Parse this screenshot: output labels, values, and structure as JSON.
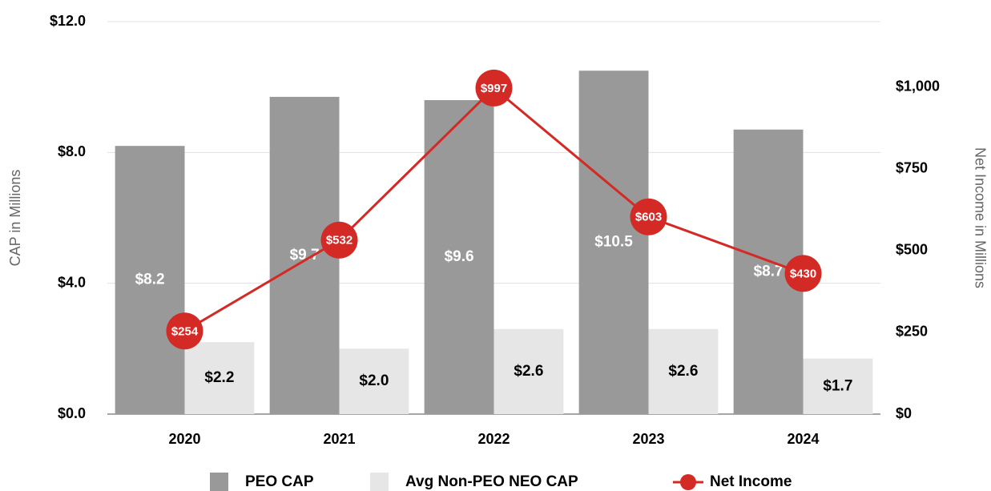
{
  "chart_data": {
    "type": "bar",
    "categories": [
      "2020",
      "2021",
      "2022",
      "2023",
      "2024"
    ],
    "series": [
      {
        "name": "PEO CAP",
        "color": "#999999",
        "values": [
          8.2,
          9.7,
          9.6,
          10.5,
          8.7
        ],
        "value_labels": [
          "$8.2",
          "$9.7",
          "$9.6",
          "$10.5",
          "$8.7"
        ]
      },
      {
        "name": "Avg Non-PEO NEO CAP",
        "color": "#e6e6e6",
        "values": [
          2.2,
          2.0,
          2.6,
          2.6,
          1.7
        ],
        "value_labels": [
          "$2.2",
          "$2.0",
          "$2.6",
          "$2.6",
          "$1.7"
        ]
      },
      {
        "name": "Net Income",
        "color": "#d42a26",
        "type": "line",
        "axis": "y2",
        "values": [
          254,
          532,
          997,
          603,
          430
        ],
        "value_labels": [
          "$254",
          "$532",
          "$997",
          "$603",
          "$430"
        ]
      }
    ],
    "ylabel": "CAP in Millions",
    "y2label": "Net Income in Millions",
    "ylim": [
      0,
      12
    ],
    "yticks": [
      {
        "value": 0,
        "label": "$0.0"
      },
      {
        "value": 4,
        "label": "$4.0"
      },
      {
        "value": 8,
        "label": "$8.0"
      },
      {
        "value": 12,
        "label": "$12.0"
      }
    ],
    "y2lim": [
      0,
      1200
    ],
    "y2ticks": [
      {
        "value": 0,
        "label": "$0"
      },
      {
        "value": 250,
        "label": "$250"
      },
      {
        "value": 500,
        "label": "$500"
      },
      {
        "value": 750,
        "label": "$750"
      },
      {
        "value": 1000,
        "label": "$1,000"
      }
    ],
    "grid": true,
    "legend": "bottom"
  }
}
